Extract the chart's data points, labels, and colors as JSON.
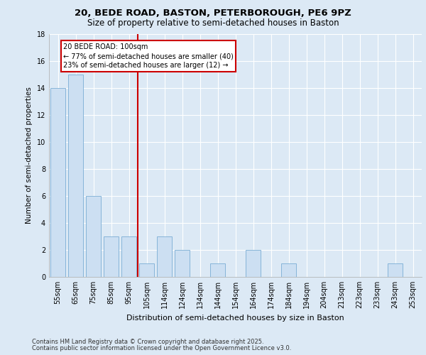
{
  "title1": "20, BEDE ROAD, BASTON, PETERBOROUGH, PE6 9PZ",
  "title2": "Size of property relative to semi-detached houses in Baston",
  "xlabel": "Distribution of semi-detached houses by size in Baston",
  "ylabel": "Number of semi-detached properties",
  "categories": [
    "55sqm",
    "65sqm",
    "75sqm",
    "85sqm",
    "95sqm",
    "105sqm",
    "114sqm",
    "124sqm",
    "134sqm",
    "144sqm",
    "154sqm",
    "164sqm",
    "174sqm",
    "184sqm",
    "194sqm",
    "204sqm",
    "213sqm",
    "223sqm",
    "233sqm",
    "243sqm",
    "253sqm"
  ],
  "values": [
    14,
    15,
    6,
    3,
    3,
    1,
    3,
    2,
    0,
    1,
    0,
    2,
    0,
    1,
    0,
    0,
    0,
    0,
    0,
    1,
    0
  ],
  "bar_color": "#ccdff2",
  "bar_edge_color": "#7aadd4",
  "vline_color": "#cc0000",
  "vline_x": 4.5,
  "annotation_title": "20 BEDE ROAD: 100sqm",
  "annotation_line1": "← 77% of semi-detached houses are smaller (40)",
  "annotation_line2": "23% of semi-detached houses are larger (12) →",
  "annotation_box_color": "#cc0000",
  "ylim": [
    0,
    18
  ],
  "yticks": [
    0,
    2,
    4,
    6,
    8,
    10,
    12,
    14,
    16,
    18
  ],
  "footer1": "Contains HM Land Registry data © Crown copyright and database right 2025.",
  "footer2": "Contains public sector information licensed under the Open Government Licence v3.0.",
  "bg_color": "#dce9f5",
  "plot_bg_color": "#dce9f5",
  "title1_fontsize": 9.5,
  "title2_fontsize": 8.5,
  "xlabel_fontsize": 8,
  "ylabel_fontsize": 7.5,
  "tick_fontsize": 7,
  "annot_fontsize": 7,
  "footer_fontsize": 6
}
